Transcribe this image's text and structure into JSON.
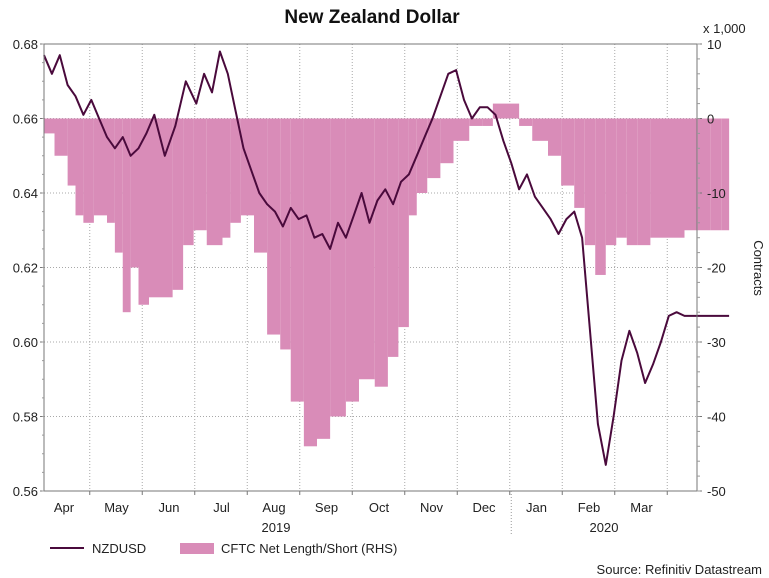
{
  "chart_data": {
    "type": "line",
    "title": "New Zealand Dollar",
    "source": "Source: Refinitiv Datastream",
    "left_axis": {
      "min": 0.56,
      "max": 0.68,
      "ticks": [
        "0.68",
        "0.66",
        "0.64",
        "0.62",
        "0.60",
        "0.58",
        "0.56"
      ]
    },
    "right_axis": {
      "min": -50,
      "max": 10,
      "ticks": [
        "10",
        "0",
        "-10",
        "-20",
        "-30",
        "-40",
        "-50"
      ],
      "multiplier_label": "x 1,000",
      "title": "Contracts"
    },
    "x_axis": {
      "months": [
        "Apr",
        "May",
        "Jun",
        "Jul",
        "Aug",
        "Sep",
        "Oct",
        "Nov",
        "Dec",
        "Jan",
        "Feb",
        "Mar"
      ],
      "years": [
        "2019",
        "2020"
      ]
    },
    "series": [
      {
        "name": "NZDUSD",
        "axis": "left",
        "color": "#4a0a3c",
        "x": [
          0,
          0.15,
          0.3,
          0.45,
          0.6,
          0.75,
          0.9,
          1.05,
          1.2,
          1.35,
          1.5,
          1.65,
          1.8,
          1.95,
          2.1,
          2.3,
          2.5,
          2.7,
          2.9,
          3.05,
          3.2,
          3.35,
          3.5,
          3.65,
          3.8,
          3.95,
          4.1,
          4.25,
          4.4,
          4.55,
          4.7,
          4.85,
          5.0,
          5.15,
          5.3,
          5.45,
          5.6,
          5.75,
          5.9,
          6.05,
          6.2,
          6.35,
          6.5,
          6.65,
          6.8,
          6.95,
          7.1,
          7.25,
          7.4,
          7.55,
          7.7,
          7.85,
          8.0,
          8.15,
          8.3,
          8.45,
          8.6,
          8.75,
          8.9,
          9.05,
          9.2,
          9.35,
          9.5,
          9.65,
          9.8,
          9.95,
          10.1,
          10.25,
          10.4,
          10.55,
          10.7,
          10.85,
          11.0,
          11.15,
          11.3,
          11.45,
          11.6,
          11.75,
          11.9,
          12.05,
          12.2,
          12.35,
          12.5,
          12.65,
          12.8,
          12.95,
          13.05
        ],
        "values": [
          0.677,
          0.672,
          0.677,
          0.669,
          0.666,
          0.661,
          0.665,
          0.66,
          0.655,
          0.652,
          0.655,
          0.65,
          0.652,
          0.656,
          0.661,
          0.65,
          0.658,
          0.67,
          0.664,
          0.672,
          0.667,
          0.678,
          0.672,
          0.662,
          0.652,
          0.646,
          0.64,
          0.637,
          0.635,
          0.631,
          0.636,
          0.633,
          0.634,
          0.628,
          0.629,
          0.625,
          0.632,
          0.628,
          0.634,
          0.64,
          0.632,
          0.638,
          0.641,
          0.637,
          0.643,
          0.645,
          0.65,
          0.655,
          0.66,
          0.666,
          0.672,
          0.673,
          0.665,
          0.66,
          0.663,
          0.663,
          0.661,
          0.654,
          0.648,
          0.641,
          0.645,
          0.639,
          0.636,
          0.633,
          0.629,
          0.633,
          0.635,
          0.628,
          0.603,
          0.578,
          0.567,
          0.58,
          0.595,
          0.603,
          0.597,
          0.589,
          0.594,
          0.6,
          0.607,
          0.608,
          0.607,
          0.607,
          0.607,
          0.607,
          0.607,
          0.607,
          0.607
        ]
      },
      {
        "name": "CFTC Net Length/Short (RHS)",
        "axis": "right",
        "color": "#d98cb8",
        "type": "area_step",
        "x": [
          0,
          0.2,
          0.45,
          0.6,
          0.75,
          0.95,
          1.2,
          1.35,
          1.5,
          1.65,
          1.8,
          2.0,
          2.2,
          2.45,
          2.65,
          2.85,
          3.1,
          3.4,
          3.55,
          3.75,
          4.0,
          4.25,
          4.5,
          4.7,
          4.95,
          5.2,
          5.45,
          5.75,
          6.0,
          6.3,
          6.55,
          6.75,
          6.95,
          7.1,
          7.3,
          7.55,
          7.8,
          8.1,
          8.35,
          8.55,
          8.8,
          9.05,
          9.3,
          9.6,
          9.85,
          10.1,
          10.3,
          10.5,
          10.7,
          10.9,
          11.1,
          11.3,
          11.55,
          11.8,
          12.0,
          12.2,
          12.45,
          12.7,
          12.9,
          13.05
        ],
        "values": [
          -2,
          -5,
          -9,
          -13,
          -14,
          -13,
          -14,
          -18,
          -26,
          -20,
          -25,
          -24,
          -24,
          -23,
          -17,
          -15,
          -17,
          -16,
          -14,
          -13,
          -18,
          -29,
          -31,
          -38,
          -44,
          -43,
          -40,
          -38,
          -35,
          -36,
          -32,
          -28,
          -13,
          -10,
          -8,
          -6,
          -3,
          -1,
          -1,
          2,
          2,
          -1,
          -3,
          -5,
          -9,
          -12,
          -17,
          -21,
          -17,
          -16,
          -17,
          -17,
          -16,
          -16,
          -16,
          -15,
          -15,
          -15,
          -15,
          -15
        ]
      }
    ],
    "legend": {
      "position": "bottom-left"
    }
  }
}
